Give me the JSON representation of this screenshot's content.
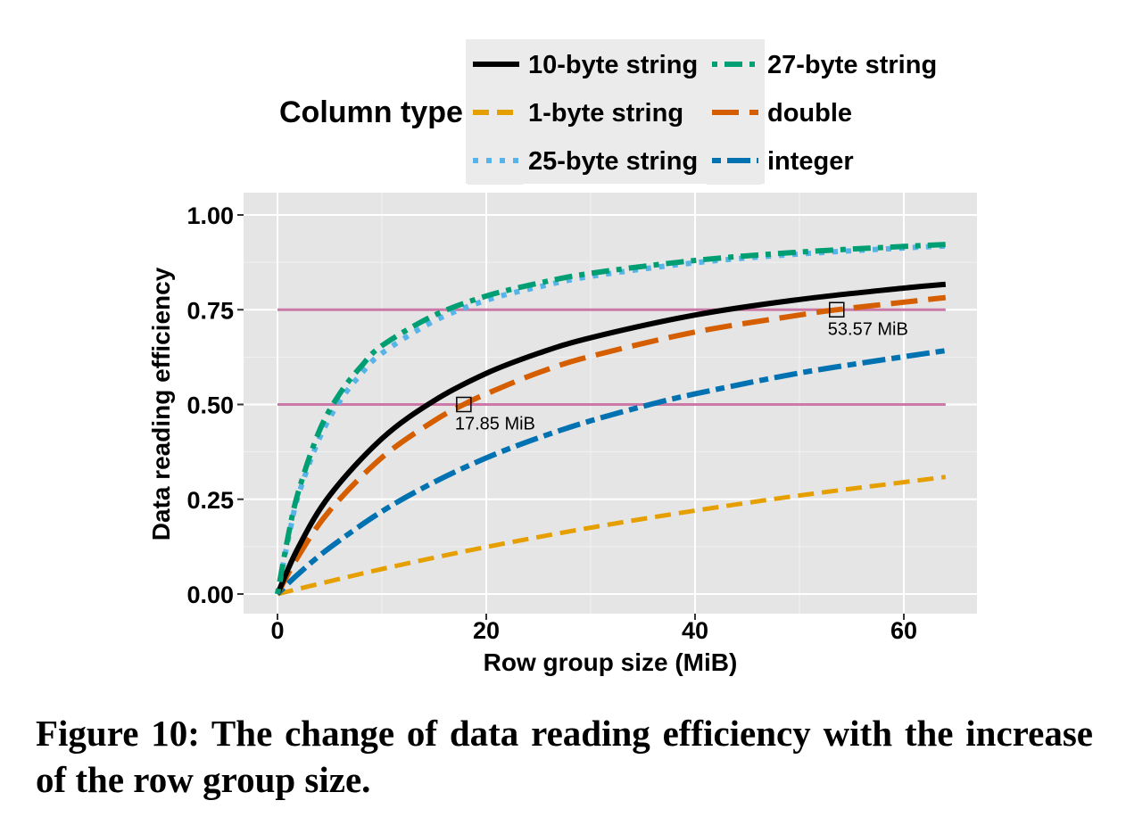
{
  "chart_data": {
    "type": "line",
    "xlabel": "Row group size (MiB)",
    "ylabel": "Data reading efficiency",
    "xlim": [
      0,
      64
    ],
    "ylim": [
      0,
      1
    ],
    "xticks": [
      0,
      20,
      40,
      60
    ],
    "yticks": [
      0.0,
      0.25,
      0.5,
      0.75,
      1.0
    ],
    "xtick_labels": [
      "0",
      "20",
      "40",
      "60"
    ],
    "ytick_labels": [
      "0.00",
      "0.25",
      "0.50",
      "0.75",
      "1.00"
    ],
    "grid": true,
    "legend": {
      "title": "Column type",
      "position": "top"
    },
    "series": [
      {
        "name": "10-byte string",
        "color": "#000000",
        "dash": "solid",
        "x": [
          0,
          2,
          5,
          10,
          15,
          20,
          25,
          30,
          40,
          50,
          60,
          64
        ],
        "y": [
          0,
          0.123,
          0.26,
          0.41,
          0.51,
          0.582,
          0.635,
          0.676,
          0.736,
          0.777,
          0.807,
          0.817
        ]
      },
      {
        "name": "1-byte string",
        "color": "#E69F00",
        "dash": "dashed",
        "x": [
          0,
          10,
          20,
          30,
          40,
          50,
          60,
          64
        ],
        "y": [
          0,
          0.066,
          0.124,
          0.175,
          0.22,
          0.26,
          0.295,
          0.309
        ]
      },
      {
        "name": "25-byte string",
        "color": "#56B4E9",
        "dash": "dotted",
        "x": [
          0,
          1,
          2,
          4,
          6,
          8,
          10,
          15,
          20,
          25,
          30,
          40,
          50,
          60,
          64
        ],
        "y": [
          0,
          0.14,
          0.26,
          0.41,
          0.51,
          0.58,
          0.635,
          0.72,
          0.775,
          0.81,
          0.838,
          0.874,
          0.897,
          0.913,
          0.918
        ]
      },
      {
        "name": "27-byte string",
        "color": "#009E73",
        "dash": "dotdash",
        "x": [
          0,
          1,
          2,
          4,
          6,
          8,
          10,
          15,
          20,
          25,
          30,
          40,
          50,
          60,
          64
        ],
        "y": [
          0,
          0.15,
          0.27,
          0.43,
          0.53,
          0.6,
          0.655,
          0.735,
          0.786,
          0.82,
          0.846,
          0.88,
          0.902,
          0.917,
          0.922
        ]
      },
      {
        "name": "double",
        "color": "#D55E00",
        "dash": "longdash",
        "x": [
          0,
          2,
          5,
          10,
          15,
          17.85,
          20,
          25,
          30,
          40,
          50,
          53.57,
          60,
          64
        ],
        "y": [
          0,
          0.1,
          0.22,
          0.36,
          0.457,
          0.5,
          0.528,
          0.584,
          0.627,
          0.691,
          0.736,
          0.75,
          0.77,
          0.782
        ]
      },
      {
        "name": "integer",
        "color": "#0072B2",
        "dash": "twodash",
        "x": [
          0,
          2,
          5,
          10,
          15,
          20,
          25,
          30,
          35.7,
          40,
          50,
          60,
          64
        ],
        "y": [
          0,
          0.053,
          0.122,
          0.218,
          0.295,
          0.359,
          0.412,
          0.457,
          0.5,
          0.528,
          0.583,
          0.626,
          0.642
        ]
      }
    ],
    "hlines": [
      {
        "y": 0.75,
        "color": "#CC79A7"
      },
      {
        "y": 0.5,
        "color": "#CC79A7"
      }
    ],
    "annotations": [
      {
        "x": 53.57,
        "y": 0.75,
        "label": "53.57 MiB"
      },
      {
        "x": 17.85,
        "y": 0.5,
        "label": "17.85 MiB"
      }
    ]
  },
  "caption": "Figure 10: The change of data reading efficiency with the increase of the row group size."
}
